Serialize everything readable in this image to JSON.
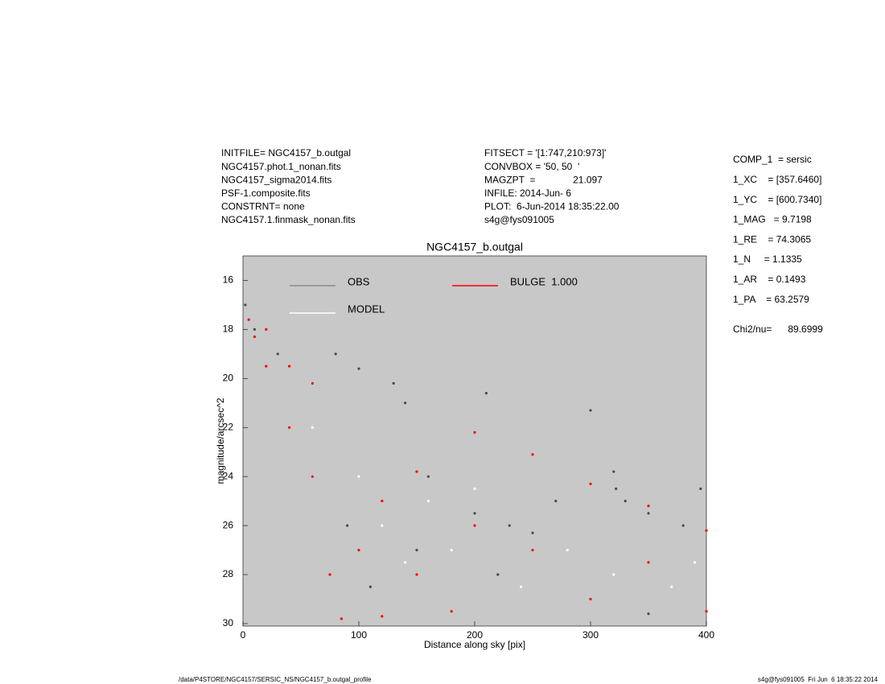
{
  "chart_data": {
    "type": "scatter",
    "title": "NGC4157_b.outgal",
    "x_label": "Distance along sky [pix]",
    "y_label": "magnitude/arcsec^2",
    "xlim": [
      0,
      400
    ],
    "xticks": [
      0,
      100,
      200,
      300,
      400
    ],
    "ylim": [
      30.1,
      15
    ],
    "yticks": [
      16,
      18,
      20,
      22,
      24,
      26,
      28,
      30
    ],
    "background": "#c8c8c8",
    "legend": true,
    "series": [
      {
        "name": "OBS",
        "color": "#4a4a4a",
        "legend_color": "#8a8a8a",
        "x": [
          2,
          10,
          30,
          80,
          100,
          130,
          140,
          160,
          200,
          210,
          230,
          250,
          270,
          300,
          320,
          322,
          330,
          350,
          380,
          395,
          150,
          220,
          350,
          90,
          110
        ],
        "values": [
          17,
          18,
          19,
          19,
          19.6,
          20.2,
          21,
          24,
          25.5,
          20.6,
          26,
          26.3,
          25,
          21.3,
          23.8,
          24.5,
          25,
          25.5,
          26,
          24.5,
          27,
          28,
          29.6,
          26,
          28.5
        ]
      },
      {
        "name": "MODEL",
        "color": "#ffffff",
        "legend_color": "#ffffff",
        "x": [
          120,
          140,
          180,
          240,
          280,
          320,
          370,
          390,
          160,
          200,
          100,
          60
        ],
        "values": [
          26,
          27.5,
          27,
          28.5,
          27,
          28,
          28.5,
          27.5,
          25,
          24.5,
          24,
          22
        ]
      },
      {
        "name": "BULGE  1.000",
        "color": "#ff0000",
        "legend_color": "#ff0000",
        "x": [
          5,
          10,
          20,
          20,
          40,
          40,
          60,
          60,
          75,
          85,
          100,
          120,
          150,
          150,
          200,
          200,
          250,
          250,
          300,
          300,
          350,
          350,
          400,
          400,
          180,
          120
        ],
        "values": [
          17.6,
          18.3,
          19.5,
          18,
          22,
          19.5,
          24,
          20.2,
          28,
          29.8,
          27,
          25,
          23.8,
          28,
          26,
          22.2,
          27,
          23.1,
          29,
          24.3,
          27.5,
          25.2,
          26.2,
          29.5,
          29.5,
          29.7
        ]
      }
    ],
    "info_left": [
      "INITFILE= NGC4157_b.outgal",
      "NGC4157.phot.1_nonan.fits",
      "NGC4157_sigma2014.fits",
      "PSF-1.composite.fits",
      "CONSTRNT= none",
      "NGC4157.1.finmask_nonan.fits"
    ],
    "info_middle": [
      "FITSECT = '[1:747,210:973]'",
      "CONVBOX = '50, 50  '",
      "MAGZPT  =              21.097",
      "INFILE: 2014-Jun- 6",
      "PLOT:  6-Jun-2014 18:35:22.00",
      "s4g@fys091005"
    ],
    "info_right": [
      "COMP_1  = sersic",
      "1_XC    = [357.6460]",
      "1_YC    = [600.7340]",
      "1_MAG   = 9.7198",
      "1_RE    = 74.3065",
      "1_N     = 1.1335",
      "1_AR    = 0.1493",
      "1_PA    = 63.2579"
    ],
    "chi2": "Chi2/nu=      89.6999",
    "footer_left": "/data/P4STORE/NGC4157/SERSIC_NS/NGC4157_b.outgal_profile",
    "footer_right": "s4g@fys091005  Fri Jun  6 18:35:22 2014"
  }
}
